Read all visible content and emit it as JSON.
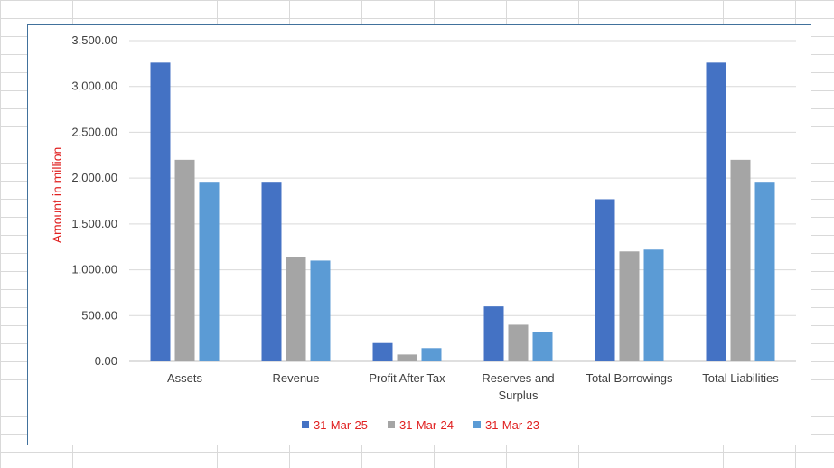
{
  "chart_data": {
    "type": "bar",
    "title": "",
    "xlabel": "",
    "ylabel": "Amount in million",
    "ylim": [
      0,
      3500
    ],
    "yticks": [
      "0.00",
      "500.00",
      "1,000.00",
      "1,500.00",
      "2,000.00",
      "2,500.00",
      "3,000.00",
      "3,500.00"
    ],
    "grid": "horizontal",
    "legend": "bottom",
    "categories": [
      [
        "Assets"
      ],
      [
        "Revenue"
      ],
      [
        "Profit After Tax"
      ],
      [
        "Reserves and",
        "Surplus"
      ],
      [
        "Total Borrowings"
      ],
      [
        "Total Liabilities"
      ]
    ],
    "series": [
      {
        "name": "31-Mar-25",
        "color": "#4472c4",
        "values": [
          3260,
          1960,
          200,
          600,
          1770,
          3260
        ]
      },
      {
        "name": "31-Mar-24",
        "color": "#a5a5a5",
        "values": [
          2200,
          1140,
          75,
          400,
          1200,
          2200
        ]
      },
      {
        "name": "31-Mar-23",
        "color": "#5b9bd5",
        "values": [
          1960,
          1100,
          145,
          320,
          1220,
          1960
        ]
      }
    ]
  }
}
